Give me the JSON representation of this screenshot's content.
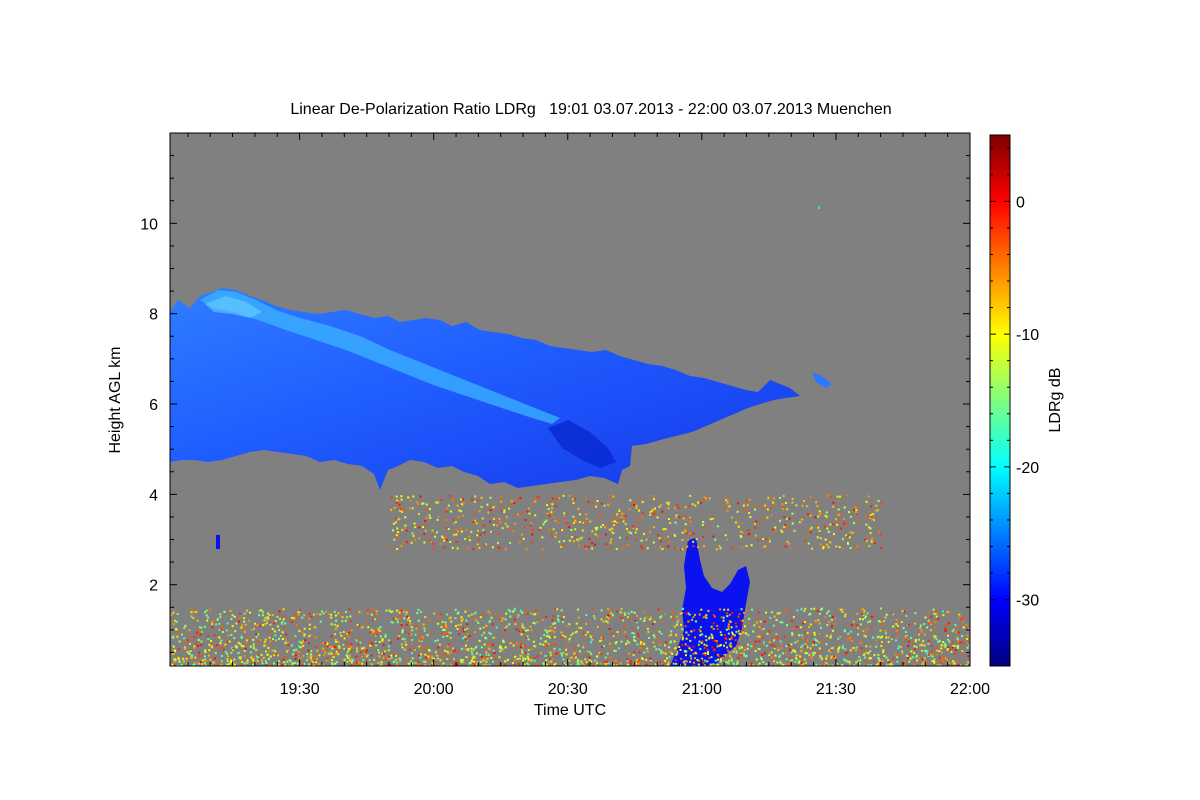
{
  "chart_data": {
    "type": "heatmap",
    "title": "Linear De-Polarization Ratio LDRg   19:01 03.07.2013 - 22:00 03.07.2013 Muenchen",
    "xlabel": "Time UTC",
    "ylabel": "Height AGL km",
    "x_unit": "minutes UTC",
    "xlim": [
      1141,
      1320
    ],
    "ylim": [
      0.2,
      12
    ],
    "x_ticks": [
      {
        "value": 1170,
        "label": "19:30"
      },
      {
        "value": 1200,
        "label": "20:00"
      },
      {
        "value": 1230,
        "label": "20:30"
      },
      {
        "value": 1260,
        "label": "21:00"
      },
      {
        "value": 1290,
        "label": "21:30"
      },
      {
        "value": 1320,
        "label": "22:00"
      }
    ],
    "y_ticks": [
      {
        "value": 2,
        "label": "2"
      },
      {
        "value": 4,
        "label": "4"
      },
      {
        "value": 6,
        "label": "6"
      },
      {
        "value": 8,
        "label": "8"
      },
      {
        "value": 10,
        "label": "10"
      }
    ],
    "colorbar": {
      "label": "LDRg dB",
      "range": [
        -35,
        5
      ],
      "ticks": [
        {
          "value": 0,
          "label": "0"
        },
        {
          "value": -10,
          "label": "-10"
        },
        {
          "value": -20,
          "label": "-20"
        },
        {
          "value": -30,
          "label": "-30"
        }
      ],
      "colormap": "jet"
    },
    "background_color": "#808080",
    "features": [
      {
        "name": "cirrus-cloud-layer",
        "time_range": [
          1141,
          1300
        ],
        "height_range": [
          4.2,
          8.6
        ],
        "ldr_db_range": [
          -30,
          -20
        ]
      },
      {
        "name": "mid-level-aerosol-layer",
        "time_range": [
          1190,
          1300
        ],
        "height_range": [
          2.8,
          4.0
        ],
        "ldr_db_range": [
          -12,
          0
        ]
      },
      {
        "name": "boundary-layer-aerosol",
        "time_range": [
          1141,
          1320
        ],
        "height_range": [
          0.2,
          1.5
        ],
        "ldr_db_range": [
          -15,
          0
        ]
      },
      {
        "name": "precipitation-shaft",
        "time_range": [
          1256,
          1271
        ],
        "height_range": [
          0.2,
          3.2
        ],
        "ldr_db_range": [
          -35,
          -30
        ]
      }
    ]
  }
}
